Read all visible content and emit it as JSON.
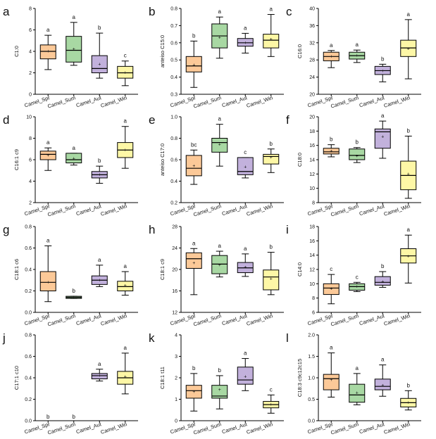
{
  "categories": [
    "Camel_Spr",
    "Camel_Sum",
    "Camel_Aut",
    "Camel_Win"
  ],
  "colors": [
    "#fcc998",
    "#a8d8a3",
    "#c2b1dc",
    "#fdf7a6"
  ],
  "chart_data": [
    {
      "panel": "a",
      "type": "box",
      "ylabel": "C1:0",
      "ylim": [
        0,
        8
      ],
      "yticks": [
        0,
        2,
        4,
        6,
        8
      ],
      "yticklabels": [
        "0",
        "2",
        "4",
        "6",
        "8"
      ],
      "boxes": [
        {
          "min": 2.3,
          "q1": 3.3,
          "median": 4.0,
          "q3": 4.6,
          "max": 5.5,
          "mean": 4.0
        },
        {
          "min": 2.7,
          "q1": 3.0,
          "median": 4.1,
          "q3": 5.4,
          "max": 6.7,
          "mean": 4.2
        },
        {
          "min": 1.5,
          "q1": 2.0,
          "median": 2.4,
          "q3": 3.6,
          "max": 5.7,
          "mean": 2.8
        },
        {
          "min": 0.8,
          "q1": 1.5,
          "median": 2.0,
          "q3": 2.6,
          "max": 3.1,
          "mean": 2.0
        }
      ],
      "letters": [
        "a",
        "a",
        "b",
        "c"
      ]
    },
    {
      "panel": "b",
      "type": "box",
      "ylabel": "anteiso C15:0",
      "ylim": [
        0.3,
        0.8
      ],
      "yticks": [
        0.3,
        0.4,
        0.5,
        0.6,
        0.7,
        0.8
      ],
      "yticklabels": [
        "0.3",
        "0.4",
        "0.5",
        "0.6",
        "0.7",
        "0.8"
      ],
      "boxes": [
        {
          "min": 0.34,
          "q1": 0.43,
          "median": 0.465,
          "q3": 0.52,
          "max": 0.61,
          "mean": 0.47
        },
        {
          "min": 0.51,
          "q1": 0.57,
          "median": 0.64,
          "q3": 0.71,
          "max": 0.75,
          "mean": 0.63
        },
        {
          "min": 0.54,
          "q1": 0.58,
          "median": 0.6,
          "q3": 0.625,
          "max": 0.655,
          "mean": 0.6
        },
        {
          "min": 0.52,
          "q1": 0.57,
          "median": 0.615,
          "q3": 0.65,
          "max": 0.765,
          "mean": 0.62
        }
      ],
      "letters": [
        "b",
        "a",
        "a",
        "a"
      ]
    },
    {
      "panel": "c",
      "type": "box",
      "ylabel": "C16:0",
      "ylim": [
        20,
        40
      ],
      "yticks": [
        20,
        24,
        28,
        32,
        36,
        40
      ],
      "yticklabels": [
        "20",
        "24",
        "28",
        "32",
        "36",
        "40"
      ],
      "boxes": [
        {
          "min": 26.2,
          "q1": 27.8,
          "median": 28.8,
          "q3": 29.8,
          "max": 30.2,
          "mean": 28.8
        },
        {
          "min": 27.4,
          "q1": 28.2,
          "median": 29.0,
          "q3": 29.8,
          "max": 30.3,
          "mean": 29.0
        },
        {
          "min": 22.9,
          "q1": 24.6,
          "median": 25.5,
          "q3": 26.5,
          "max": 27.0,
          "mean": 25.4
        },
        {
          "min": 23.6,
          "q1": 28.8,
          "median": 30.8,
          "q3": 32.6,
          "max": 37.4,
          "mean": 30.6
        }
      ],
      "letters": [
        "a",
        "a",
        "b",
        "a"
      ]
    },
    {
      "panel": "d",
      "type": "box",
      "ylabel": "C16:1 c9",
      "ylim": [
        2,
        10
      ],
      "yticks": [
        2,
        4,
        6,
        8,
        10
      ],
      "yticklabels": [
        "2",
        "4",
        "6",
        "8",
        "10"
      ],
      "boxes": [
        {
          "min": 5.0,
          "q1": 6.0,
          "median": 6.5,
          "q3": 6.8,
          "max": 7.1,
          "mean": 6.4
        },
        {
          "min": 5.5,
          "q1": 5.7,
          "median": 6.0,
          "q3": 6.6,
          "max": 6.6,
          "mean": 6.1
        },
        {
          "min": 3.8,
          "q1": 4.3,
          "median": 4.6,
          "q3": 4.9,
          "max": 5.4,
          "mean": 4.6
        },
        {
          "min": 5.2,
          "q1": 6.2,
          "median": 6.9,
          "q3": 7.6,
          "max": 9.1,
          "mean": 6.9
        }
      ],
      "letters": [
        "a",
        "a",
        "b",
        "a"
      ]
    },
    {
      "panel": "e",
      "type": "box",
      "ylabel": "anteiso C17:0",
      "ylim": [
        0.2,
        1.0
      ],
      "yticks": [
        0.2,
        0.4,
        0.6,
        0.8,
        1.0
      ],
      "yticklabels": [
        "0.2",
        "0.4",
        "0.6",
        "0.8",
        "1.0"
      ],
      "boxes": [
        {
          "min": 0.37,
          "q1": 0.45,
          "median": 0.52,
          "q3": 0.64,
          "max": 0.69,
          "mean": 0.54
        },
        {
          "min": 0.54,
          "q1": 0.67,
          "median": 0.76,
          "q3": 0.8,
          "max": 0.93,
          "mean": 0.74
        },
        {
          "min": 0.43,
          "q1": 0.46,
          "median": 0.49,
          "q3": 0.62,
          "max": 0.62,
          "mean": 0.53
        },
        {
          "min": 0.48,
          "q1": 0.56,
          "median": 0.63,
          "q3": 0.65,
          "max": 0.7,
          "mean": 0.62
        }
      ],
      "letters": [
        "bc",
        "a",
        "c",
        "b"
      ]
    },
    {
      "panel": "f",
      "type": "box",
      "ylabel": "C18:0",
      "ylim": [
        8,
        20
      ],
      "yticks": [
        8,
        10,
        12,
        14,
        16,
        18,
        20
      ],
      "yticklabels": [
        "8",
        "10",
        "12",
        "14",
        "16",
        "18",
        "20"
      ],
      "boxes": [
        {
          "min": 14.4,
          "q1": 14.8,
          "median": 15.1,
          "q3": 15.6,
          "max": 16.1,
          "mean": 15.2
        },
        {
          "min": 13.6,
          "q1": 14.0,
          "median": 14.6,
          "q3": 15.5,
          "max": 15.7,
          "mean": 14.5
        },
        {
          "min": 14.2,
          "q1": 15.6,
          "median": 17.9,
          "q3": 18.3,
          "max": 19.4,
          "mean": 17.2
        },
        {
          "min": 8.6,
          "q1": 9.8,
          "median": 11.8,
          "q3": 13.8,
          "max": 17.3,
          "mean": 12.0
        }
      ],
      "letters": [
        "b",
        "b",
        "a",
        "b"
      ]
    },
    {
      "panel": "g",
      "type": "box",
      "ylabel": "C18:1 c6",
      "ylim": [
        0,
        0.8
      ],
      "yticks": [
        0,
        0.2,
        0.4,
        0.6,
        0.8
      ],
      "yticklabels": [
        "0.0",
        "0.2",
        "0.4",
        "0.6",
        "0.8"
      ],
      "boxes": [
        {
          "min": 0.1,
          "q1": 0.2,
          "median": 0.28,
          "q3": 0.38,
          "max": 0.62,
          "mean": 0.28
        },
        {
          "min": 0.13,
          "q1": 0.13,
          "median": 0.14,
          "q3": 0.15,
          "max": 0.15,
          "mean": 0.14
        },
        {
          "min": 0.24,
          "q1": 0.26,
          "median": 0.3,
          "q3": 0.34,
          "max": 0.44,
          "mean": 0.3
        },
        {
          "min": 0.16,
          "q1": 0.2,
          "median": 0.24,
          "q3": 0.29,
          "max": 0.38,
          "mean": 0.25
        }
      ],
      "letters": [
        "a",
        "b",
        "a",
        "a"
      ]
    },
    {
      "panel": "h",
      "type": "box",
      "ylabel": "C18:1 c9",
      "ylim": [
        12,
        28
      ],
      "yticks": [
        12,
        16,
        20,
        24,
        28
      ],
      "yticklabels": [
        "12",
        "16",
        "20",
        "24",
        "28"
      ],
      "boxes": [
        {
          "min": 15.3,
          "q1": 20.2,
          "median": 22.0,
          "q3": 23.1,
          "max": 23.9,
          "mean": 21.2
        },
        {
          "min": 18.6,
          "q1": 19.2,
          "median": 21.0,
          "q3": 22.6,
          "max": 23.4,
          "mean": 20.8
        },
        {
          "min": 18.7,
          "q1": 19.4,
          "median": 20.3,
          "q3": 21.3,
          "max": 22.9,
          "mean": 20.4
        },
        {
          "min": 15.3,
          "q1": 16.2,
          "median": 18.6,
          "q3": 19.9,
          "max": 23.2,
          "mean": 18.2
        }
      ],
      "letters": [
        "a",
        "a",
        "a",
        "b"
      ]
    },
    {
      "panel": "i",
      "type": "box",
      "ylabel": "C14:0",
      "ylim": [
        6,
        18
      ],
      "yticks": [
        6,
        8,
        10,
        12,
        14,
        16,
        18
      ],
      "yticklabels": [
        "6",
        "8",
        "10",
        "12",
        "14",
        "16",
        "18"
      ],
      "boxes": [
        {
          "min": 7.2,
          "q1": 8.5,
          "median": 9.4,
          "q3": 10.0,
          "max": 11.3,
          "mean": 9.3
        },
        {
          "min": 8.9,
          "q1": 9.1,
          "median": 9.6,
          "q3": 10.0,
          "max": 10.2,
          "mean": 9.6
        },
        {
          "min": 9.5,
          "q1": 9.8,
          "median": 10.2,
          "q3": 11.0,
          "max": 11.7,
          "mean": 10.3
        },
        {
          "min": 10.1,
          "q1": 12.9,
          "median": 13.9,
          "q3": 14.9,
          "max": 16.8,
          "mean": 13.8
        }
      ],
      "letters": [
        "c",
        "c",
        "b",
        "a"
      ]
    },
    {
      "panel": "j",
      "type": "box",
      "ylabel": "C17:1 c10",
      "ylim": [
        0,
        0.8
      ],
      "yticks": [
        0,
        0.2,
        0.4,
        0.6,
        0.8
      ],
      "yticklabels": [
        "0.0",
        "0.2",
        "0.4",
        "0.6",
        "0.8"
      ],
      "boxes": [
        null,
        null,
        {
          "min": 0.37,
          "q1": 0.39,
          "median": 0.42,
          "q3": 0.44,
          "max": 0.48,
          "mean": 0.42
        },
        {
          "min": 0.25,
          "q1": 0.34,
          "median": 0.4,
          "q3": 0.46,
          "max": 0.63,
          "mean": 0.41
        }
      ],
      "letters": [
        "b",
        "b",
        "a",
        "a"
      ]
    },
    {
      "panel": "k",
      "type": "box",
      "ylabel": "C18:1 t11",
      "ylim": [
        0,
        4
      ],
      "yticks": [
        0,
        1,
        2,
        3,
        4
      ],
      "yticklabels": [
        "0",
        "1",
        "2",
        "3",
        "4"
      ],
      "boxes": [
        {
          "min": 0.45,
          "q1": 1.05,
          "median": 1.4,
          "q3": 1.65,
          "max": 2.2,
          "mean": 1.35
        },
        {
          "min": 0.55,
          "q1": 1.05,
          "median": 1.15,
          "q3": 1.65,
          "max": 2.1,
          "mean": 1.45
        },
        {
          "min": 1.4,
          "q1": 1.7,
          "median": 1.9,
          "q3": 2.5,
          "max": 2.9,
          "mean": 2.05
        },
        {
          "min": 0.35,
          "q1": 0.6,
          "median": 0.75,
          "q3": 0.9,
          "max": 1.2,
          "mean": 0.75
        }
      ],
      "letters": [
        "b",
        "b",
        "a",
        "c"
      ]
    },
    {
      "panel": "l",
      "type": "box",
      "ylabel": "C18:3 c9c12c15",
      "ylim": [
        0,
        2
      ],
      "yticks": [
        0,
        0.5,
        1.0,
        1.5,
        2.0
      ],
      "yticklabels": [
        "0.0",
        "0.5",
        "1.0",
        "1.5",
        "2.0"
      ],
      "boxes": [
        {
          "min": 0.55,
          "q1": 0.72,
          "median": 0.98,
          "q3": 1.08,
          "max": 1.58,
          "mean": 0.95
        },
        {
          "min": 0.37,
          "q1": 0.43,
          "median": 0.6,
          "q3": 0.85,
          "max": 1.1,
          "mean": 0.65
        },
        {
          "min": 0.57,
          "q1": 0.72,
          "median": 0.8,
          "q3": 0.97,
          "max": 1.3,
          "mean": 0.82
        },
        {
          "min": 0.25,
          "q1": 0.32,
          "median": 0.42,
          "q3": 0.52,
          "max": 0.7,
          "mean": 0.42
        }
      ],
      "letters": [
        "a",
        "a",
        "a",
        "b"
      ]
    }
  ]
}
